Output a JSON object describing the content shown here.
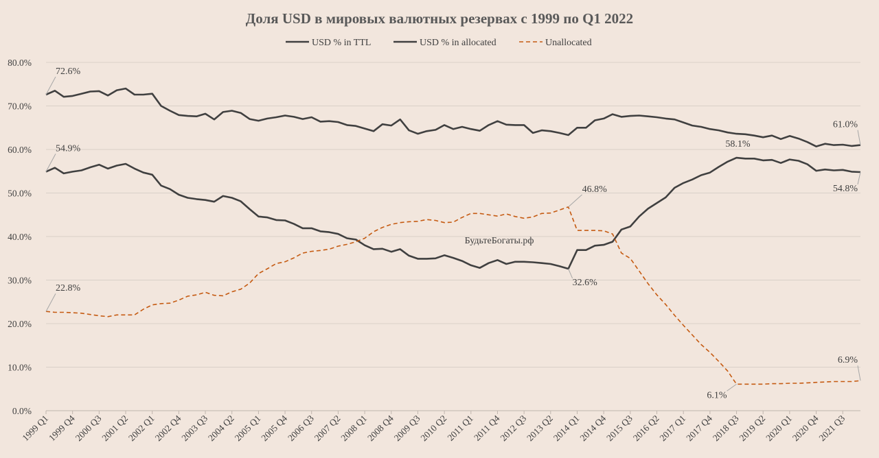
{
  "chart_data": {
    "type": "line",
    "title": "Доля USD в мировых валютных резервах с 1999 по Q1 2022",
    "ylim": [
      0,
      80
    ],
    "y_ticks": [
      "0.0%",
      "10.0%",
      "20.0%",
      "30.0%",
      "40.0%",
      "50.0%",
      "60.0%",
      "70.0%",
      "80.0%"
    ],
    "y_tick_values": [
      0,
      10,
      20,
      30,
      40,
      50,
      60,
      70,
      80
    ],
    "grid": true,
    "legend_position": "top",
    "watermark": "БудьтеБогаты.рф",
    "x_tick_labels": [
      "1999 Q1",
      "1999 Q4",
      "2000 Q3",
      "2001 Q2",
      "2002 Q1",
      "2002 Q4",
      "2003 Q3",
      "2004 Q2",
      "2005 Q1",
      "2005 Q4",
      "2006 Q3",
      "2007 Q2",
      "2008 Q1",
      "2008 Q4",
      "2009 Q3",
      "2010 Q2",
      "2011 Q1",
      "2011 Q4",
      "2012 Q3",
      "2013 Q2",
      "2014 Q1",
      "2014 Q4",
      "2015 Q3",
      "2016 Q2",
      "2017 Q1",
      "2017 Q4",
      "2018 Q3",
      "2019 Q2",
      "2020 Q1",
      "2020 Q4",
      "2021 Q3"
    ],
    "x": [
      "1999 Q1",
      "1999 Q2",
      "1999 Q3",
      "1999 Q4",
      "2000 Q1",
      "2000 Q2",
      "2000 Q3",
      "2000 Q4",
      "2001 Q1",
      "2001 Q2",
      "2001 Q3",
      "2001 Q4",
      "2002 Q1",
      "2002 Q2",
      "2002 Q3",
      "2002 Q4",
      "2003 Q1",
      "2003 Q2",
      "2003 Q3",
      "2003 Q4",
      "2004 Q1",
      "2004 Q2",
      "2004 Q3",
      "2004 Q4",
      "2005 Q1",
      "2005 Q2",
      "2005 Q3",
      "2005 Q4",
      "2006 Q1",
      "2006 Q2",
      "2006 Q3",
      "2006 Q4",
      "2007 Q1",
      "2007 Q2",
      "2007 Q3",
      "2007 Q4",
      "2008 Q1",
      "2008 Q2",
      "2008 Q3",
      "2008 Q4",
      "2009 Q1",
      "2009 Q2",
      "2009 Q3",
      "2009 Q4",
      "2010 Q1",
      "2010 Q2",
      "2010 Q3",
      "2010 Q4",
      "2011 Q1",
      "2011 Q2",
      "2011 Q3",
      "2011 Q4",
      "2012 Q1",
      "2012 Q2",
      "2012 Q3",
      "2012 Q4",
      "2013 Q1",
      "2013 Q2",
      "2013 Q3",
      "2013 Q4",
      "2014 Q1",
      "2014 Q2",
      "2014 Q3",
      "2014 Q4",
      "2015 Q1",
      "2015 Q2",
      "2015 Q3",
      "2015 Q4",
      "2016 Q1",
      "2016 Q2",
      "2016 Q3",
      "2016 Q4",
      "2017 Q1",
      "2017 Q2",
      "2017 Q3",
      "2017 Q4",
      "2018 Q1",
      "2018 Q2",
      "2018 Q3",
      "2018 Q4",
      "2019 Q1",
      "2019 Q2",
      "2019 Q3",
      "2019 Q4",
      "2020 Q1",
      "2020 Q2",
      "2020 Q3",
      "2020 Q4",
      "2021 Q1",
      "2021 Q2",
      "2021 Q3",
      "2021 Q4",
      "2022 Q1"
    ],
    "series": [
      {
        "name": "USD % in TTL",
        "color": "#404040",
        "dash": "solid",
        "values": [
          54.9,
          55.8,
          54.5,
          54.9,
          55.2,
          55.9,
          56.5,
          55.6,
          56.3,
          56.7,
          55.6,
          54.7,
          54.2,
          51.7,
          50.9,
          49.6,
          48.9,
          48.6,
          48.4,
          48.0,
          49.3,
          48.9,
          48.1,
          46.3,
          44.6,
          44.4,
          43.8,
          43.7,
          42.9,
          41.9,
          41.9,
          41.2,
          41.0,
          40.6,
          39.6,
          39.3,
          38.0,
          37.1,
          37.2,
          36.5,
          37.1,
          35.6,
          34.9,
          34.9,
          35.0,
          35.7,
          35.1,
          34.4,
          33.4,
          32.8,
          33.9,
          34.6,
          33.7,
          34.2,
          34.2,
          34.1,
          33.9,
          33.7,
          33.2,
          32.6,
          36.9,
          36.9,
          37.9,
          38.1,
          38.8,
          41.6,
          42.3,
          44.6,
          46.4,
          47.7,
          49.0,
          51.2,
          52.3,
          53.1,
          54.1,
          54.7,
          56.0,
          57.2,
          58.1,
          57.9,
          57.9,
          57.5,
          57.6,
          56.9,
          57.7,
          57.4,
          56.6,
          55.1,
          55.4,
          55.2,
          55.3,
          54.9,
          54.8
        ]
      },
      {
        "name": "USD % in allocated",
        "color": "#404040",
        "dash": "solid",
        "values": [
          72.6,
          73.5,
          72.1,
          72.3,
          72.8,
          73.3,
          73.4,
          72.4,
          73.6,
          74.0,
          72.6,
          72.6,
          72.8,
          70.0,
          68.9,
          67.9,
          67.7,
          67.6,
          68.2,
          66.9,
          68.6,
          68.9,
          68.4,
          67.0,
          66.6,
          67.1,
          67.4,
          67.8,
          67.5,
          67.0,
          67.4,
          66.4,
          66.5,
          66.3,
          65.6,
          65.4,
          64.8,
          64.2,
          65.8,
          65.5,
          66.9,
          64.4,
          63.6,
          64.2,
          64.5,
          65.6,
          64.7,
          65.2,
          64.7,
          64.3,
          65.6,
          66.5,
          65.7,
          65.6,
          65.6,
          63.8,
          64.4,
          64.2,
          63.8,
          63.3,
          65.0,
          65.0,
          66.7,
          67.1,
          68.1,
          67.5,
          67.7,
          67.8,
          67.6,
          67.4,
          67.1,
          66.9,
          66.2,
          65.5,
          65.2,
          64.7,
          64.4,
          63.9,
          63.6,
          63.5,
          63.2,
          62.8,
          63.2,
          62.4,
          63.1,
          62.5,
          61.7,
          60.7,
          61.3,
          61.0,
          61.1,
          60.8,
          61.0
        ]
      },
      {
        "name": "Unallocated",
        "color": "#c55a11",
        "dash": "dashed",
        "values": [
          22.8,
          22.6,
          22.6,
          22.5,
          22.4,
          22.1,
          21.8,
          21.6,
          22.0,
          22.0,
          22.0,
          23.3,
          24.3,
          24.6,
          24.7,
          25.4,
          26.3,
          26.6,
          27.2,
          26.5,
          26.4,
          27.3,
          27.9,
          29.3,
          31.5,
          32.6,
          33.8,
          34.2,
          35.1,
          36.2,
          36.6,
          36.8,
          37.1,
          37.8,
          38.2,
          38.8,
          39.6,
          41.1,
          42.1,
          42.8,
          43.2,
          43.4,
          43.5,
          43.9,
          43.7,
          43.2,
          43.3,
          44.4,
          45.3,
          45.3,
          45.0,
          44.7,
          45.2,
          44.6,
          44.2,
          44.5,
          45.3,
          45.4,
          46.1,
          46.8,
          41.4,
          41.4,
          41.4,
          41.3,
          40.6,
          36.2,
          35.0,
          32.1,
          29.2,
          26.6,
          24.4,
          21.9,
          19.6,
          17.4,
          15.2,
          13.4,
          11.3,
          9.1,
          6.1,
          6.1,
          6.1,
          6.1,
          6.2,
          6.2,
          6.3,
          6.3,
          6.4,
          6.5,
          6.6,
          6.7,
          6.7,
          6.7,
          6.9
        ]
      }
    ],
    "annotations": [
      {
        "series": 1,
        "index": 0,
        "text": "72.6%"
      },
      {
        "series": 0,
        "index": 0,
        "text": "54.9%"
      },
      {
        "series": 2,
        "index": 0,
        "text": "22.8%"
      },
      {
        "series": 2,
        "index": 59,
        "text": "46.8%"
      },
      {
        "series": 0,
        "index": 59,
        "text": "32.6%"
      },
      {
        "series": 0,
        "index": 78,
        "text": "58.1%"
      },
      {
        "series": 2,
        "index": 78,
        "text": "6.1%"
      },
      {
        "series": 1,
        "index": 92,
        "text": "61.0%"
      },
      {
        "series": 0,
        "index": 92,
        "text": "54.8%"
      },
      {
        "series": 2,
        "index": 92,
        "text": "6.9%"
      }
    ]
  }
}
